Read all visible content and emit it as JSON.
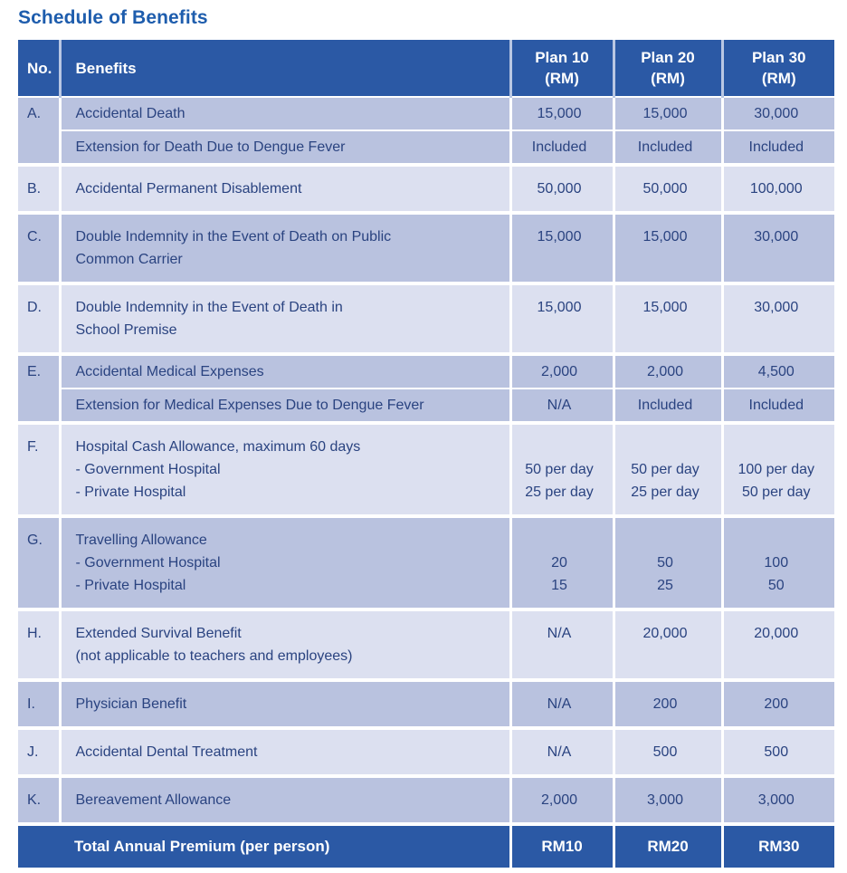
{
  "page": {
    "title": "Schedule of Benefits"
  },
  "colors": {
    "header_blue": "#2b59a5",
    "row_dark": "#b9c2df",
    "row_light": "#dce0f0",
    "text_navy": "#2a4380",
    "title_blue": "#1e5dad",
    "divider": "#ffffff"
  },
  "table": {
    "columns": [
      "No.",
      "Benefits",
      "Plan 10\n(RM)",
      "Plan 20\n(RM)",
      "Plan 30\n(RM)"
    ],
    "rows": [
      {
        "no": "A.",
        "benefit": "Accidental Death",
        "values": [
          "15,000",
          "15,000",
          "30,000"
        ],
        "sub": {
          "benefit": "Extension for Death Due to Dengue Fever",
          "values": [
            "Included",
            "Included",
            "Included"
          ]
        }
      },
      {
        "no": "B.",
        "benefit": "Accidental Permanent Disablement",
        "values": [
          "50,000",
          "50,000",
          "100,000"
        ]
      },
      {
        "no": "C.",
        "benefit": "Double Indemnity in the Event of Death on Public\nCommon Carrier",
        "values": [
          "15,000",
          "15,000",
          "30,000"
        ]
      },
      {
        "no": "D.",
        "benefit": "Double Indemnity in the Event of Death in\nSchool Premise",
        "values": [
          "15,000",
          "15,000",
          "30,000"
        ]
      },
      {
        "no": "E.",
        "benefit": "Accidental Medical Expenses",
        "values": [
          "2,000",
          "2,000",
          "4,500"
        ],
        "sub": {
          "benefit": "Extension for Medical Expenses Due to Dengue Fever",
          "values": [
            "N/A",
            "Included",
            "Included"
          ]
        }
      },
      {
        "no": "F.",
        "benefit": "Hospital Cash Allowance, maximum 60 days\n- Government Hospital\n- Private Hospital",
        "values": [
          " \n50 per day\n25 per day",
          " \n50 per day\n25 per day",
          " \n100 per day\n50 per day"
        ]
      },
      {
        "no": "G.",
        "benefit": "Travelling Allowance\n- Government Hospital\n- Private Hospital",
        "values": [
          " \n20\n15",
          " \n50\n25",
          " \n100\n50"
        ]
      },
      {
        "no": "H.",
        "benefit": "Extended Survival Benefit\n(not applicable to teachers and employees)",
        "values": [
          "N/A",
          "20,000",
          "20,000"
        ]
      },
      {
        "no": "I.",
        "benefit": "Physician Benefit",
        "values": [
          "N/A",
          "200",
          "200"
        ]
      },
      {
        "no": "J.",
        "benefit": "Accidental Dental Treatment",
        "values": [
          "N/A",
          "500",
          "500"
        ]
      },
      {
        "no": "K.",
        "benefit": "Bereavement Allowance",
        "values": [
          "2,000",
          "3,000",
          "3,000"
        ]
      }
    ],
    "footer": {
      "label": "Total Annual Premium (per person)",
      "values": [
        "RM10",
        "RM20",
        "RM30"
      ]
    }
  }
}
